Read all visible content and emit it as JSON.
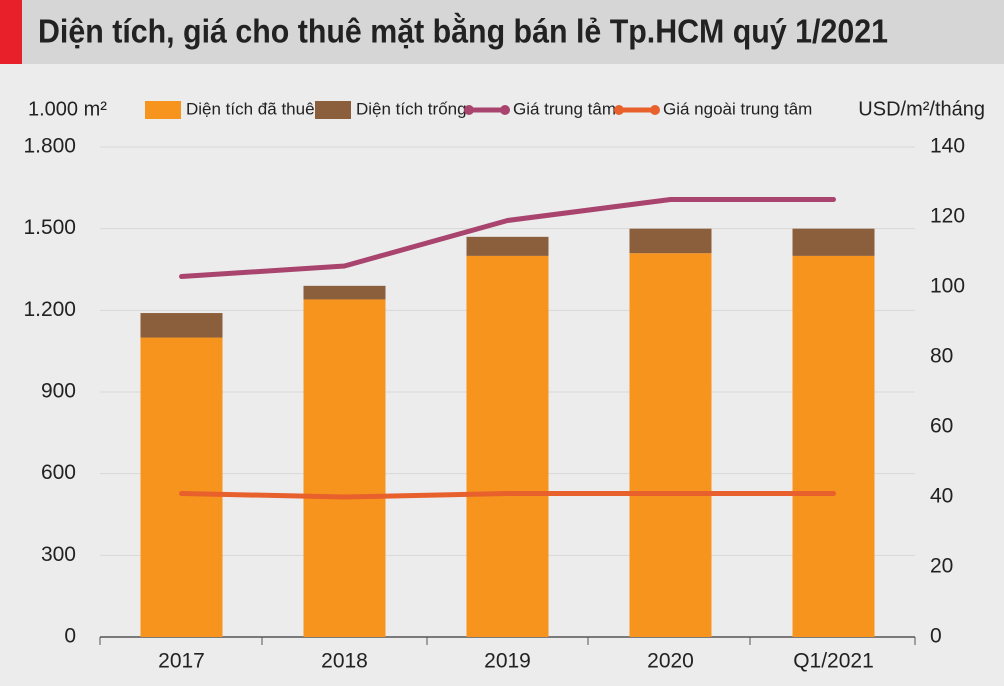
{
  "chart_data": {
    "type": "bar",
    "title": "Diện tích, giá cho thuê mặt bằng bán lẻ Tp.HCM quý 1/2021",
    "y_label": "1.000 m²",
    "y2_label": "USD/m²/tháng",
    "categories": [
      "2017",
      "2018",
      "2019",
      "2020",
      "Q1/2021"
    ],
    "stacked": true,
    "grid": true,
    "legend": "top",
    "series": [
      {
        "name": "Diện tích đã thuê",
        "kind": "bar",
        "color": "#f7941d",
        "values": [
          1100,
          1240,
          1400,
          1410,
          1400
        ]
      },
      {
        "name": "Diện tích trống",
        "kind": "bar",
        "color": "#8b5e3c",
        "values": [
          90,
          50,
          70,
          90,
          100
        ]
      },
      {
        "name": "Giá trung tâm",
        "kind": "line",
        "axis": "y2",
        "color": "#a8446e",
        "values": [
          103,
          106,
          119,
          125,
          125
        ]
      },
      {
        "name": "Giá ngoài trung tâm",
        "kind": "line",
        "axis": "y2",
        "color": "#e8602c",
        "values": [
          41,
          40,
          41,
          41,
          41
        ]
      }
    ],
    "ylim": [
      0,
      1800
    ],
    "yticks": [
      0,
      300,
      600,
      900,
      {
        "value": 1200,
        "label": "1.200"
      },
      {
        "value": 1500,
        "label": "1.500"
      },
      {
        "value": 1800,
        "label": "1.800"
      }
    ],
    "y2lim": [
      0,
      140
    ],
    "y2ticks": [
      0,
      20,
      40,
      60,
      80,
      100,
      120,
      140
    ]
  }
}
